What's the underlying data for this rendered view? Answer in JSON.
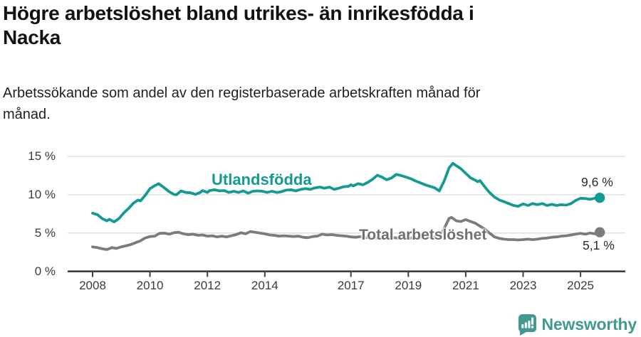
{
  "header": {
    "title": "Högre arbetslöshet bland utrikes- än inrikesfödda i\nNacka",
    "subtitle": "Arbetssökande som andel av den registerbaserade arbetskraften månad för\nmånad."
  },
  "footer": {
    "brand": "Newsworthy",
    "brand_color": "#42998f",
    "logo_icon": "bar-chart-speech-bubble-icon"
  },
  "chart_data": {
    "type": "line",
    "title": "Högre arbetslöshet bland utrikes- än inrikesfödda i Nacka",
    "subtitle": "Arbetssökande som andel av den registerbaserade arbetskraften månad för månad.",
    "unit": "%",
    "grid": "horizontal",
    "ylim": [
      0,
      15
    ],
    "xlim": [
      2007.1,
      2026.5
    ],
    "y_tick_values": [
      0,
      5,
      10,
      15
    ],
    "y_tick_labels": [
      "0 %",
      "5 %",
      "10 %",
      "15 %"
    ],
    "x_tick_years": [
      2008,
      2010,
      2012,
      2014,
      2017,
      2019,
      2021,
      2023,
      2025
    ],
    "x_tick_labels": [
      "2008",
      "2010",
      "2012",
      "2014",
      "2017",
      "2019",
      "2021",
      "2023",
      "2025"
    ],
    "colors": {
      "utlandsfodda": "#149a92",
      "total": "#7b7b7b",
      "axis": "#3f3f3f",
      "grid": "#dcdcdc"
    },
    "series": [
      {
        "name": "Utlandsfödda",
        "color": "#149a92",
        "end_label": "9,6 %",
        "end_value": 9.6,
        "points": [
          [
            2008.0,
            7.6
          ],
          [
            2008.17,
            7.4
          ],
          [
            2008.33,
            6.9
          ],
          [
            2008.5,
            6.6
          ],
          [
            2008.58,
            6.8
          ],
          [
            2008.75,
            6.45
          ],
          [
            2008.92,
            6.9
          ],
          [
            2009.08,
            7.6
          ],
          [
            2009.25,
            8.2
          ],
          [
            2009.42,
            8.9
          ],
          [
            2009.58,
            9.3
          ],
          [
            2009.67,
            9.2
          ],
          [
            2009.83,
            9.9
          ],
          [
            2010.0,
            10.8
          ],
          [
            2010.17,
            11.2
          ],
          [
            2010.3,
            11.45
          ],
          [
            2010.5,
            10.9
          ],
          [
            2010.67,
            10.4
          ],
          [
            2010.83,
            10.05
          ],
          [
            2010.92,
            10.0
          ],
          [
            2011.08,
            10.5
          ],
          [
            2011.25,
            10.3
          ],
          [
            2011.42,
            10.25
          ],
          [
            2011.58,
            10.05
          ],
          [
            2011.75,
            10.3
          ],
          [
            2011.83,
            10.55
          ],
          [
            2012.0,
            10.3
          ],
          [
            2012.08,
            10.55
          ],
          [
            2012.25,
            10.65
          ],
          [
            2012.42,
            10.5
          ],
          [
            2012.58,
            10.55
          ],
          [
            2012.75,
            10.3
          ],
          [
            2012.92,
            10.45
          ],
          [
            2013.08,
            10.3
          ],
          [
            2013.25,
            10.5
          ],
          [
            2013.42,
            10.2
          ],
          [
            2013.58,
            10.45
          ],
          [
            2013.75,
            10.5
          ],
          [
            2013.92,
            10.45
          ],
          [
            2014.08,
            10.3
          ],
          [
            2014.25,
            10.45
          ],
          [
            2014.42,
            10.3
          ],
          [
            2014.58,
            10.4
          ],
          [
            2014.75,
            10.6
          ],
          [
            2014.92,
            10.65
          ],
          [
            2015.08,
            10.5
          ],
          [
            2015.25,
            10.7
          ],
          [
            2015.42,
            10.8
          ],
          [
            2015.58,
            10.7
          ],
          [
            2015.75,
            10.9
          ],
          [
            2015.92,
            11.0
          ],
          [
            2016.08,
            10.85
          ],
          [
            2016.25,
            11.0
          ],
          [
            2016.42,
            10.7
          ],
          [
            2016.58,
            10.85
          ],
          [
            2016.75,
            11.05
          ],
          [
            2016.92,
            11.1
          ],
          [
            2017.0,
            11.3
          ],
          [
            2017.08,
            11.15
          ],
          [
            2017.25,
            11.45
          ],
          [
            2017.42,
            11.3
          ],
          [
            2017.58,
            11.6
          ],
          [
            2017.75,
            12.0
          ],
          [
            2017.92,
            12.55
          ],
          [
            2018.08,
            12.3
          ],
          [
            2018.25,
            11.95
          ],
          [
            2018.42,
            12.2
          ],
          [
            2018.58,
            12.65
          ],
          [
            2018.75,
            12.5
          ],
          [
            2018.92,
            12.3
          ],
          [
            2019.08,
            12.1
          ],
          [
            2019.25,
            11.8
          ],
          [
            2019.42,
            11.55
          ],
          [
            2019.58,
            11.3
          ],
          [
            2019.75,
            11.1
          ],
          [
            2019.92,
            10.9
          ],
          [
            2020.0,
            10.7
          ],
          [
            2020.08,
            10.5
          ],
          [
            2020.25,
            11.8
          ],
          [
            2020.42,
            13.5
          ],
          [
            2020.55,
            14.1
          ],
          [
            2020.67,
            13.8
          ],
          [
            2020.83,
            13.4
          ],
          [
            2021.0,
            12.8
          ],
          [
            2021.17,
            12.2
          ],
          [
            2021.33,
            11.9
          ],
          [
            2021.42,
            11.7
          ],
          [
            2021.5,
            11.85
          ],
          [
            2021.67,
            11.0
          ],
          [
            2021.83,
            10.3
          ],
          [
            2022.0,
            9.7
          ],
          [
            2022.17,
            9.3
          ],
          [
            2022.33,
            9.1
          ],
          [
            2022.5,
            8.85
          ],
          [
            2022.67,
            8.6
          ],
          [
            2022.83,
            8.5
          ],
          [
            2023.0,
            8.8
          ],
          [
            2023.17,
            8.6
          ],
          [
            2023.33,
            8.85
          ],
          [
            2023.5,
            8.7
          ],
          [
            2023.67,
            8.85
          ],
          [
            2023.83,
            8.6
          ],
          [
            2024.0,
            8.75
          ],
          [
            2024.17,
            8.6
          ],
          [
            2024.33,
            8.7
          ],
          [
            2024.5,
            8.65
          ],
          [
            2024.67,
            8.85
          ],
          [
            2024.83,
            9.25
          ],
          [
            2025.0,
            9.55
          ],
          [
            2025.17,
            9.5
          ],
          [
            2025.33,
            9.4
          ],
          [
            2025.5,
            9.55
          ],
          [
            2025.67,
            9.6
          ]
        ]
      },
      {
        "name": "Total arbetslöshet",
        "color": "#7b7b7b",
        "end_label": "5,1 %",
        "end_value": 5.1,
        "points": [
          [
            2008.0,
            3.2
          ],
          [
            2008.17,
            3.1
          ],
          [
            2008.33,
            2.95
          ],
          [
            2008.5,
            2.85
          ],
          [
            2008.67,
            3.1
          ],
          [
            2008.83,
            3.0
          ],
          [
            2009.0,
            3.2
          ],
          [
            2009.17,
            3.35
          ],
          [
            2009.33,
            3.5
          ],
          [
            2009.5,
            3.75
          ],
          [
            2009.67,
            4.0
          ],
          [
            2009.83,
            4.35
          ],
          [
            2010.0,
            4.55
          ],
          [
            2010.17,
            4.6
          ],
          [
            2010.33,
            4.95
          ],
          [
            2010.5,
            5.0
          ],
          [
            2010.67,
            4.85
          ],
          [
            2010.83,
            5.05
          ],
          [
            2011.0,
            5.1
          ],
          [
            2011.17,
            4.9
          ],
          [
            2011.33,
            4.8
          ],
          [
            2011.5,
            4.85
          ],
          [
            2011.67,
            4.7
          ],
          [
            2011.83,
            4.75
          ],
          [
            2012.0,
            4.6
          ],
          [
            2012.17,
            4.65
          ],
          [
            2012.33,
            4.5
          ],
          [
            2012.5,
            4.6
          ],
          [
            2012.67,
            4.5
          ],
          [
            2012.83,
            4.65
          ],
          [
            2013.0,
            4.8
          ],
          [
            2013.17,
            5.05
          ],
          [
            2013.33,
            4.9
          ],
          [
            2013.5,
            5.2
          ],
          [
            2013.67,
            5.1
          ],
          [
            2013.83,
            5.0
          ],
          [
            2014.0,
            4.9
          ],
          [
            2014.17,
            4.75
          ],
          [
            2014.33,
            4.7
          ],
          [
            2014.5,
            4.6
          ],
          [
            2014.67,
            4.65
          ],
          [
            2014.83,
            4.6
          ],
          [
            2015.0,
            4.55
          ],
          [
            2015.17,
            4.6
          ],
          [
            2015.33,
            4.45
          ],
          [
            2015.5,
            4.4
          ],
          [
            2015.67,
            4.55
          ],
          [
            2015.83,
            4.6
          ],
          [
            2016.0,
            4.85
          ],
          [
            2016.17,
            4.75
          ],
          [
            2016.33,
            4.8
          ],
          [
            2016.5,
            4.7
          ],
          [
            2016.67,
            4.65
          ],
          [
            2016.83,
            4.6
          ],
          [
            2017.0,
            4.5
          ],
          [
            2017.17,
            4.45
          ],
          [
            2017.33,
            4.55
          ],
          [
            2017.5,
            4.4
          ],
          [
            2017.67,
            4.45
          ],
          [
            2017.83,
            4.35
          ],
          [
            2018.0,
            4.4
          ],
          [
            2018.17,
            4.35
          ],
          [
            2018.33,
            4.45
          ],
          [
            2018.5,
            4.4
          ],
          [
            2018.67,
            4.35
          ],
          [
            2018.83,
            4.4
          ],
          [
            2019.0,
            4.3
          ],
          [
            2019.17,
            4.4
          ],
          [
            2019.33,
            4.35
          ],
          [
            2019.5,
            4.4
          ],
          [
            2019.67,
            4.45
          ],
          [
            2019.83,
            4.5
          ],
          [
            2020.0,
            4.5
          ],
          [
            2020.08,
            4.55
          ],
          [
            2020.25,
            5.6
          ],
          [
            2020.42,
            6.9
          ],
          [
            2020.5,
            7.05
          ],
          [
            2020.67,
            6.6
          ],
          [
            2020.83,
            6.5
          ],
          [
            2021.0,
            6.75
          ],
          [
            2021.17,
            6.5
          ],
          [
            2021.33,
            6.3
          ],
          [
            2021.5,
            5.9
          ],
          [
            2021.67,
            5.5
          ],
          [
            2021.83,
            5.0
          ],
          [
            2022.0,
            4.5
          ],
          [
            2022.17,
            4.3
          ],
          [
            2022.33,
            4.2
          ],
          [
            2022.5,
            4.15
          ],
          [
            2022.67,
            4.15
          ],
          [
            2022.83,
            4.1
          ],
          [
            2023.0,
            4.15
          ],
          [
            2023.17,
            4.2
          ],
          [
            2023.33,
            4.15
          ],
          [
            2023.5,
            4.2
          ],
          [
            2023.67,
            4.3
          ],
          [
            2023.83,
            4.35
          ],
          [
            2024.0,
            4.45
          ],
          [
            2024.17,
            4.5
          ],
          [
            2024.33,
            4.6
          ],
          [
            2024.5,
            4.65
          ],
          [
            2024.67,
            4.75
          ],
          [
            2024.83,
            4.85
          ],
          [
            2025.0,
            4.95
          ],
          [
            2025.17,
            4.85
          ],
          [
            2025.33,
            5.0
          ],
          [
            2025.5,
            4.9
          ],
          [
            2025.67,
            5.1
          ]
        ]
      }
    ]
  }
}
